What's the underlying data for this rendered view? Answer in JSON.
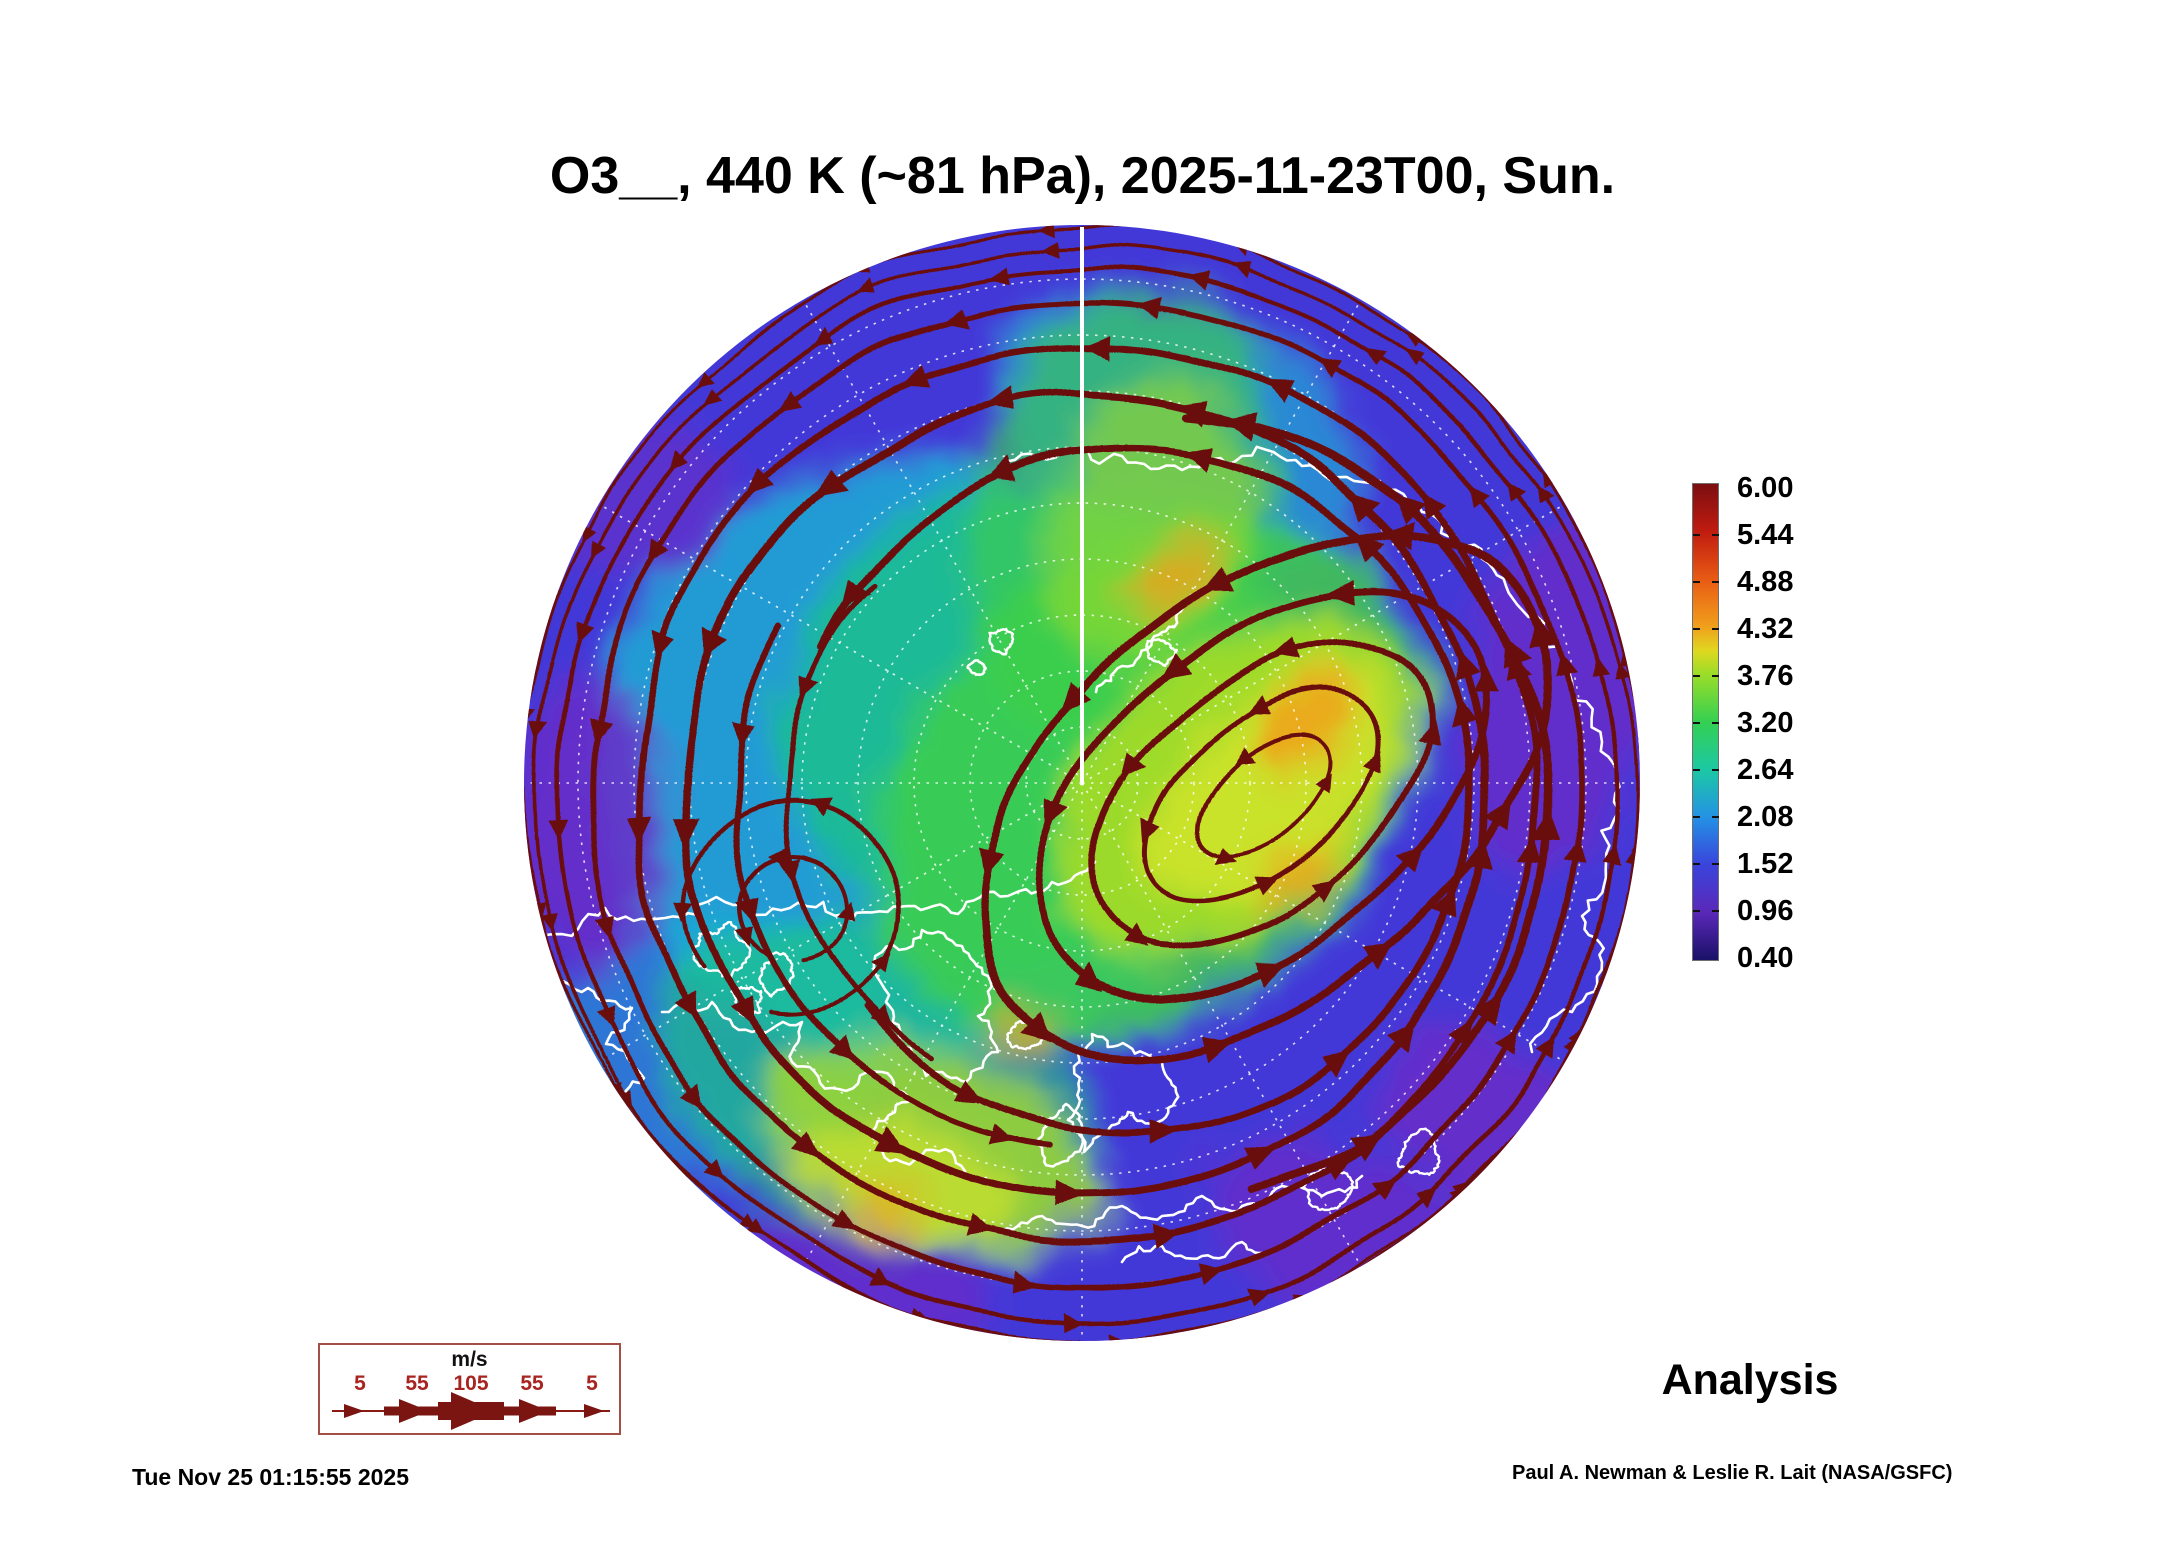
{
  "title": "O3__, 440 K (~81 hPa), 2025-11-23T00, Sun.",
  "analysis_label": "Analysis",
  "timestamp": "Tue Nov 25 01:15:55 2025",
  "credit": "Paul A. Newman & Leslie R. Lait (NASA/GSFC)",
  "colorbar": {
    "tick_labels": [
      "6.00",
      "5.44",
      "4.88",
      "4.32",
      "3.76",
      "3.20",
      "2.64",
      "2.08",
      "1.52",
      "0.96",
      "0.40"
    ],
    "min_value": 0.4,
    "max_value": 6.0,
    "gradient_stops": [
      {
        "value": 0.4,
        "color": "#1a1168"
      },
      {
        "value": 0.96,
        "color": "#5a28b8"
      },
      {
        "value": 1.52,
        "color": "#3a44dc"
      },
      {
        "value": 2.08,
        "color": "#2492e4"
      },
      {
        "value": 2.64,
        "color": "#1cc8a4"
      },
      {
        "value": 3.2,
        "color": "#34d052"
      },
      {
        "value": 3.76,
        "color": "#9add28"
      },
      {
        "value": 4.04,
        "color": "#e0d820"
      },
      {
        "value": 4.32,
        "color": "#f0a01c"
      },
      {
        "value": 4.88,
        "color": "#e85a14"
      },
      {
        "value": 5.44,
        "color": "#c01c10"
      },
      {
        "value": 6.0,
        "color": "#7c0e10"
      }
    ]
  },
  "wind_legend": {
    "units_label": "m/s",
    "speed_labels": [
      "5",
      "55",
      "105",
      "55",
      "5"
    ],
    "number_color": "#a82420",
    "border_color": "#a34f45",
    "arrow_color": "#7a1512",
    "line_color": "#8a1a12"
  },
  "colors": {
    "streamline": "#6b0f10",
    "coastline": "#ffffff",
    "graticule": "#ffffff",
    "background": "#ffffff",
    "text": "#000000"
  },
  "field_palette": {
    "indigo": "#4338d8",
    "violet": "#6a2cc8",
    "cyan": "#1cb4d4",
    "teal_green": "#1cc87c",
    "green": "#3ecf4a",
    "yellow_green": "#a6dc28",
    "yellow": "#d8e428",
    "orange": "#f0a01c"
  }
}
